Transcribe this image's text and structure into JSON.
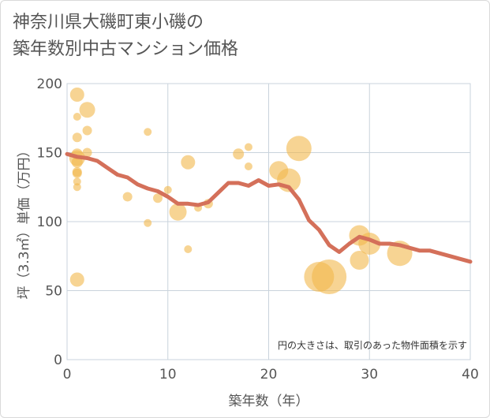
{
  "title": {
    "line1": "神奈川県大磯町東小磯の",
    "line2": "築年数別中古マンション価格"
  },
  "note": "円の大きさは、取引のあった物件面積を示す",
  "colors": {
    "bubble": "#f2b84b",
    "line": "#d4705a",
    "grid": "#c9d3dc",
    "axis_text": "#555555",
    "plot_bg": "#ffffff"
  },
  "chart_data": {
    "type": "scatter",
    "xlabel": "築年数（年）",
    "ylabel": "坪（3.3㎡）単価（万円）",
    "xlim": [
      0,
      40
    ],
    "ylim": [
      0,
      200
    ],
    "xticks": [
      "0",
      "10",
      "20",
      "30",
      "40"
    ],
    "yticks": [
      "0",
      "50",
      "100",
      "150",
      "200"
    ],
    "grid": true,
    "bubbles": [
      {
        "x": 1,
        "y": 192,
        "s": 9
      },
      {
        "x": 1,
        "y": 176,
        "s": 5
      },
      {
        "x": 1,
        "y": 161,
        "s": 6
      },
      {
        "x": 1,
        "y": 149,
        "s": 7
      },
      {
        "x": 1,
        "y": 146,
        "s": 10
      },
      {
        "x": 1,
        "y": 143,
        "s": 7
      },
      {
        "x": 1,
        "y": 136,
        "s": 6
      },
      {
        "x": 1,
        "y": 135,
        "s": 6
      },
      {
        "x": 1,
        "y": 129,
        "s": 5
      },
      {
        "x": 1,
        "y": 125,
        "s": 5
      },
      {
        "x": 1,
        "y": 58,
        "s": 9
      },
      {
        "x": 2,
        "y": 181,
        "s": 10
      },
      {
        "x": 2,
        "y": 166,
        "s": 6
      },
      {
        "x": 2,
        "y": 150,
        "s": 6
      },
      {
        "x": 6,
        "y": 118,
        "s": 6
      },
      {
        "x": 8,
        "y": 165,
        "s": 5
      },
      {
        "x": 8,
        "y": 99,
        "s": 5
      },
      {
        "x": 9,
        "y": 117,
        "s": 6
      },
      {
        "x": 10,
        "y": 123,
        "s": 5
      },
      {
        "x": 11,
        "y": 107,
        "s": 11
      },
      {
        "x": 12,
        "y": 143,
        "s": 9
      },
      {
        "x": 12,
        "y": 80,
        "s": 5
      },
      {
        "x": 13,
        "y": 110,
        "s": 5
      },
      {
        "x": 14,
        "y": 113,
        "s": 6
      },
      {
        "x": 17,
        "y": 149,
        "s": 7
      },
      {
        "x": 18,
        "y": 154,
        "s": 5
      },
      {
        "x": 18,
        "y": 140,
        "s": 5
      },
      {
        "x": 21,
        "y": 137,
        "s": 12
      },
      {
        "x": 22,
        "y": 130,
        "s": 15
      },
      {
        "x": 23,
        "y": 153,
        "s": 16
      },
      {
        "x": 25,
        "y": 60,
        "s": 19
      },
      {
        "x": 26,
        "y": 60,
        "s": 22
      },
      {
        "x": 29,
        "y": 90,
        "s": 13
      },
      {
        "x": 29,
        "y": 72,
        "s": 12
      },
      {
        "x": 30,
        "y": 84,
        "s": 14
      },
      {
        "x": 33,
        "y": 77,
        "s": 16
      }
    ],
    "trend": {
      "x": [
        0,
        1,
        2,
        3,
        4,
        5,
        6,
        7,
        8,
        9,
        10,
        11,
        12,
        13,
        14,
        15,
        16,
        17,
        18,
        19,
        20,
        21,
        22,
        23,
        24,
        25,
        26,
        27,
        28,
        29,
        30,
        31,
        32,
        33,
        34,
        35,
        36,
        37,
        38,
        39,
        40
      ],
      "y": [
        149,
        147,
        146,
        144,
        139,
        134,
        132,
        127,
        124,
        122,
        118,
        113,
        113,
        112,
        114,
        121,
        128,
        128,
        126,
        130,
        126,
        127,
        125,
        116,
        101,
        94,
        83,
        78,
        84,
        89,
        87,
        84,
        84,
        83,
        81,
        79,
        79,
        77,
        75,
        73,
        71
      ]
    }
  }
}
